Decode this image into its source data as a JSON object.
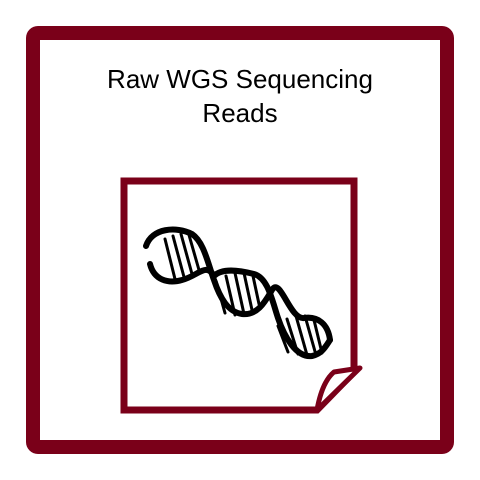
{
  "card": {
    "title_line1": "Raw WGS Sequencing",
    "title_line2": "Reads",
    "border_color": "#7a0019",
    "icon": "dna-document-icon"
  }
}
